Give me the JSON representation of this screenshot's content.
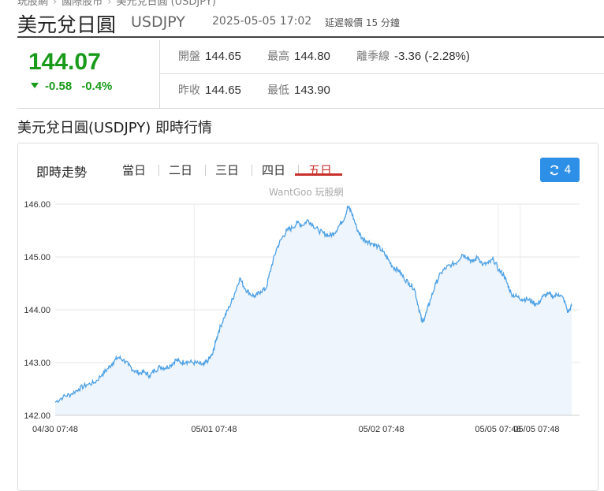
{
  "breadcrumb": [
    "玩股網",
    "國際股市",
    "美元兌日圓 (USDJPY)"
  ],
  "header": {
    "name": "美元兌日圓",
    "code": "USDJPY",
    "datetime": "2025-05-05 17:02",
    "delay_note": "延遲報價 15 分鐘"
  },
  "quote": {
    "price": "144.07",
    "change": "-0.58",
    "change_pct": "-0.4%",
    "open_label": "開盤",
    "open": "144.65",
    "high_label": "最高",
    "high": "144.80",
    "ma_label": "離季線",
    "ma": "-3.36 (-2.28%)",
    "prev_label": "昨收",
    "prev": "144.65",
    "low_label": "最低",
    "low": "143.90"
  },
  "colors": {
    "down": "#1a9a1a",
    "accent": "#c9302c",
    "button": "#2e8fe6",
    "line": "#4ea1e4"
  },
  "section_title": "美元兌日圓(USDJPY) 即時行情",
  "chart_panel": {
    "heading": "即時走勢",
    "tabs": [
      "當日",
      "二日",
      "三日",
      "四日",
      "五日"
    ],
    "active_tab": "五日",
    "refresh_label": "4",
    "refresh_icon": "refresh-icon",
    "watermark": "WantGoo 玩股網"
  },
  "chart_data": {
    "type": "area",
    "title": "",
    "xlabel": "",
    "ylabel": "",
    "ylim": [
      142.0,
      146.0
    ],
    "yticks": [
      "146.00",
      "145.00",
      "144.00",
      "143.00",
      "142.00"
    ],
    "grid": true,
    "x_tick_labels": [
      "04/30 07:48",
      "05/01 07:48",
      "05/02 07:48",
      "05/05 07:48",
      "05/05 07:48"
    ],
    "series": [
      {
        "points": [
          [
            0.0,
            142.25
          ],
          [
            0.015,
            142.35
          ],
          [
            0.03,
            142.4
          ],
          [
            0.045,
            142.5
          ],
          [
            0.06,
            142.58
          ],
          [
            0.075,
            142.62
          ],
          [
            0.09,
            142.78
          ],
          [
            0.1,
            142.88
          ],
          [
            0.11,
            143.0
          ],
          [
            0.12,
            143.1
          ],
          [
            0.13,
            143.05
          ],
          [
            0.14,
            142.95
          ],
          [
            0.15,
            142.85
          ],
          [
            0.16,
            142.8
          ],
          [
            0.17,
            142.82
          ],
          [
            0.18,
            142.75
          ],
          [
            0.19,
            142.85
          ],
          [
            0.2,
            142.92
          ],
          [
            0.21,
            142.9
          ],
          [
            0.22,
            142.95
          ],
          [
            0.23,
            143.05
          ],
          [
            0.24,
            143.0
          ],
          [
            0.25,
            143.02
          ],
          [
            0.262,
            143.0
          ],
          [
            0.274,
            142.98
          ],
          [
            0.283,
            142.95
          ],
          [
            0.292,
            143.05
          ],
          [
            0.3,
            143.15
          ],
          [
            0.306,
            143.4
          ],
          [
            0.312,
            143.6
          ],
          [
            0.322,
            143.85
          ],
          [
            0.332,
            144.05
          ],
          [
            0.342,
            144.3
          ],
          [
            0.352,
            144.6
          ],
          [
            0.362,
            144.4
          ],
          [
            0.372,
            144.3
          ],
          [
            0.382,
            144.25
          ],
          [
            0.392,
            144.35
          ],
          [
            0.402,
            144.4
          ],
          [
            0.412,
            144.8
          ],
          [
            0.422,
            145.15
          ],
          [
            0.432,
            145.35
          ],
          [
            0.442,
            145.5
          ],
          [
            0.452,
            145.55
          ],
          [
            0.462,
            145.65
          ],
          [
            0.472,
            145.6
          ],
          [
            0.482,
            145.7
          ],
          [
            0.492,
            145.6
          ],
          [
            0.502,
            145.5
          ],
          [
            0.512,
            145.45
          ],
          [
            0.522,
            145.4
          ],
          [
            0.532,
            145.45
          ],
          [
            0.542,
            145.6
          ],
          [
            0.552,
            145.75
          ],
          [
            0.558,
            145.95
          ],
          [
            0.565,
            145.85
          ],
          [
            0.575,
            145.55
          ],
          [
            0.585,
            145.35
          ],
          [
            0.595,
            145.3
          ],
          [
            0.605,
            145.25
          ],
          [
            0.615,
            145.2
          ],
          [
            0.625,
            145.1
          ],
          [
            0.635,
            144.95
          ],
          [
            0.645,
            144.8
          ],
          [
            0.655,
            144.75
          ],
          [
            0.665,
            144.6
          ],
          [
            0.675,
            144.5
          ],
          [
            0.685,
            144.4
          ],
          [
            0.693,
            144.05
          ],
          [
            0.7,
            143.75
          ],
          [
            0.708,
            143.95
          ],
          [
            0.716,
            144.2
          ],
          [
            0.726,
            144.5
          ],
          [
            0.736,
            144.7
          ],
          [
            0.746,
            144.8
          ],
          [
            0.756,
            144.85
          ],
          [
            0.766,
            144.9
          ],
          [
            0.776,
            145.05
          ],
          [
            0.786,
            145.0
          ],
          [
            0.796,
            144.9
          ],
          [
            0.806,
            145.0
          ],
          [
            0.816,
            144.85
          ],
          [
            0.826,
            144.88
          ],
          [
            0.836,
            144.95
          ],
          [
            0.846,
            144.75
          ],
          [
            0.856,
            144.65
          ],
          [
            0.862,
            144.5
          ],
          [
            0.87,
            144.3
          ],
          [
            0.88,
            144.25
          ],
          [
            0.89,
            144.2
          ],
          [
            0.9,
            144.2
          ],
          [
            0.91,
            144.15
          ],
          [
            0.92,
            144.1
          ],
          [
            0.93,
            144.25
          ],
          [
            0.94,
            144.3
          ],
          [
            0.95,
            144.25
          ],
          [
            0.96,
            144.3
          ],
          [
            0.97,
            144.2
          ],
          [
            0.978,
            143.95
          ],
          [
            0.985,
            144.07
          ]
        ]
      }
    ],
    "session_breaks": [
      0.265,
      0.565,
      0.845,
      0.887
    ]
  }
}
